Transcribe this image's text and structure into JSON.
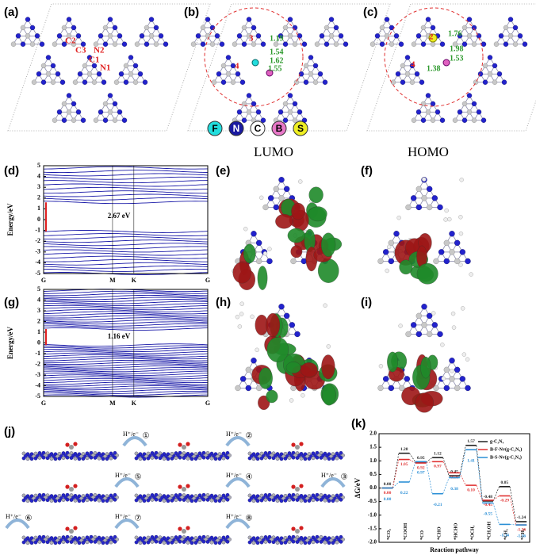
{
  "panel_a": {
    "label": "(a)",
    "atoms": [
      "C2",
      "C3",
      "N2",
      "C1",
      "N1"
    ]
  },
  "panel_b": {
    "label": "(b)",
    "sites": [
      "3",
      "4"
    ],
    "bonds": [
      "1.19",
      "1.54",
      "1.62",
      "1.55"
    ],
    "legend": [
      "F",
      "N",
      "C",
      "B",
      "S"
    ]
  },
  "panel_c": {
    "label": "(c)",
    "sites": [
      "2",
      "4"
    ],
    "bonds": [
      "1.76",
      "1.98",
      "1.53",
      "1.38"
    ]
  },
  "panel_d": {
    "label": "(d)",
    "ylabel": "Energy/eV",
    "ylim": [
      -5,
      5
    ],
    "yticks": [
      5,
      4,
      3,
      2,
      1,
      0,
      -1,
      -2,
      -3,
      -4,
      -5
    ],
    "xticks": [
      "G",
      "M",
      "K",
      "G"
    ],
    "gap": "2.67 eV"
  },
  "panel_e": {
    "label": "(e)",
    "title": "LUMO"
  },
  "panel_f": {
    "label": "(f)",
    "title": "HOMO"
  },
  "panel_g": {
    "label": "(g)",
    "ylabel": "Energy/eV",
    "ylim": [
      -5,
      5
    ],
    "yticks": [
      5,
      4,
      3,
      2,
      1,
      0,
      -1,
      -2,
      -3,
      -4,
      -5
    ],
    "xticks": [
      "G",
      "M",
      "K",
      "G"
    ],
    "gap": "1.16 eV"
  },
  "panel_h": {
    "label": "(h)"
  },
  "panel_i": {
    "label": "(i)"
  },
  "panel_j": {
    "label": "(j)",
    "steps": [
      {
        "reagent": "H⁺/e⁻",
        "number": "①"
      },
      {
        "reagent": "H⁺/e⁻",
        "number": "②"
      },
      {
        "reagent": "H⁺/e⁻",
        "number": "③"
      },
      {
        "reagent": "H⁺/e⁻",
        "number": "④"
      },
      {
        "reagent": "H⁺/e⁻",
        "number": "⑤"
      },
      {
        "reagent": "H⁺/e⁻",
        "number": "⑥"
      },
      {
        "reagent": "H⁺/e⁻",
        "number": "⑦"
      },
      {
        "reagent": "H⁺/e⁻",
        "number": "⑧"
      }
    ]
  },
  "panel_k": {
    "label": "(k)",
    "type": "step",
    "ylabel": "ΔG/eV",
    "xlabel": "Reaction pathway",
    "categories": [
      "*CO₂",
      "*COOH",
      "*CO",
      "*CHO",
      "*HCHO",
      "*OCH₃",
      "*CH₃OH",
      "*CH₃",
      "*CH₄"
    ],
    "ylim": [
      -2,
      2
    ],
    "yticks": [
      {
        "value": 2,
        "label": "2.0"
      },
      1.5,
      {
        "value": 1,
        "label": "1.0"
      },
      0.5,
      {
        "value": 0,
        "label": "0.0"
      },
      -0.5,
      {
        "value": -1,
        "label": "-1.0"
      },
      -1.5,
      {
        "value": -2,
        "label": "-2.0"
      }
    ],
    "series": [
      {
        "name": "g-C₃N₄",
        "color": "#222222",
        "values": [
          0,
          1.28,
          0.95,
          1.12,
          0.45,
          1.57,
          -0.48,
          0.05,
          -1.24
        ],
        "value_labels": [
          "0.00",
          "1.28",
          "0.95",
          "1.12",
          "0.45",
          "1.57",
          "-0.48",
          "0.05",
          "-1.24"
        ]
      },
      {
        "name": "B-F-Nv(g-C₃N₄)",
        "color": "#e03030",
        "values": [
          0,
          1.05,
          0.92,
          0.97,
          0.56,
          0.1,
          -0.45,
          -0.29,
          -1.36
        ],
        "value_labels": [
          "0.00",
          "1.05",
          "0.92",
          "0.97",
          "0.56",
          "0.10",
          "-0.45",
          "-0.29",
          "-1.36"
        ]
      },
      {
        "name": "B-S-Nv(g-C₃N₄)",
        "color": "#2b8fd6",
        "values": [
          0,
          0.22,
          0.97,
          -0.21,
          0.38,
          1.41,
          -0.55,
          -1.34,
          -1.36
        ],
        "value_labels": [
          "0.00",
          "0.22",
          "0.97",
          "-0.21",
          "0.38",
          "1.41",
          "-0.55",
          "-1.34",
          "-1.36"
        ]
      }
    ]
  }
}
